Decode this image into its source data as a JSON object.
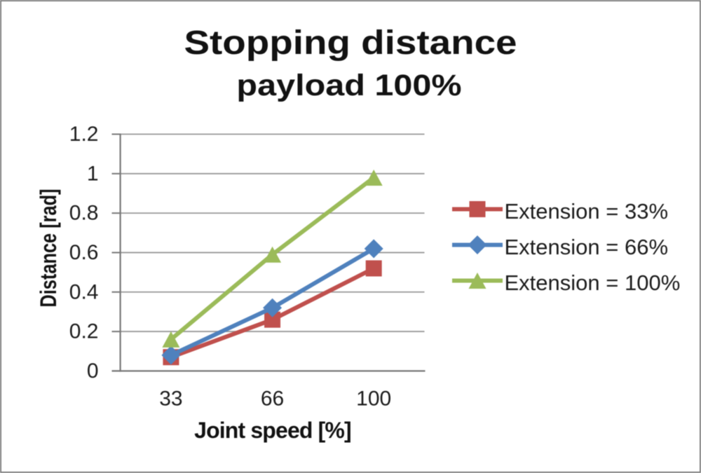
{
  "chart_data": {
    "type": "line",
    "title": "Stopping distance",
    "subtitle": "payload 100%",
    "xlabel": "Joint speed [%]",
    "ylabel": "Distance [rad]",
    "categories": [
      "33",
      "66",
      "100"
    ],
    "x_values": [
      33,
      66,
      100
    ],
    "ylim": [
      0,
      1.2
    ],
    "y_ticks": [
      0,
      0.2,
      0.4,
      0.6,
      0.8,
      1,
      1.2
    ],
    "y_tick_labels": [
      "0",
      "0.2",
      "0.4",
      "0.6",
      "0.8",
      "1",
      "1.2"
    ],
    "grid": true,
    "legend_position": "right",
    "series": [
      {
        "name": "Extension = 33%",
        "color": "#c0504d",
        "marker": "square",
        "values": [
          0.07,
          0.26,
          0.52
        ]
      },
      {
        "name": "Extension = 66%",
        "color": "#4f81bd",
        "marker": "diamond",
        "values": [
          0.08,
          0.32,
          0.62
        ]
      },
      {
        "name": "Extension = 100%",
        "color": "#9bbb59",
        "marker": "triangle",
        "values": [
          0.16,
          0.59,
          0.98
        ]
      }
    ],
    "style": {
      "grid_color": "#999999",
      "axis_color": "#787878",
      "text_color": "#1c1c1c",
      "frame_border_color": "#7e7e7e",
      "background_color": "#ffffff"
    }
  }
}
